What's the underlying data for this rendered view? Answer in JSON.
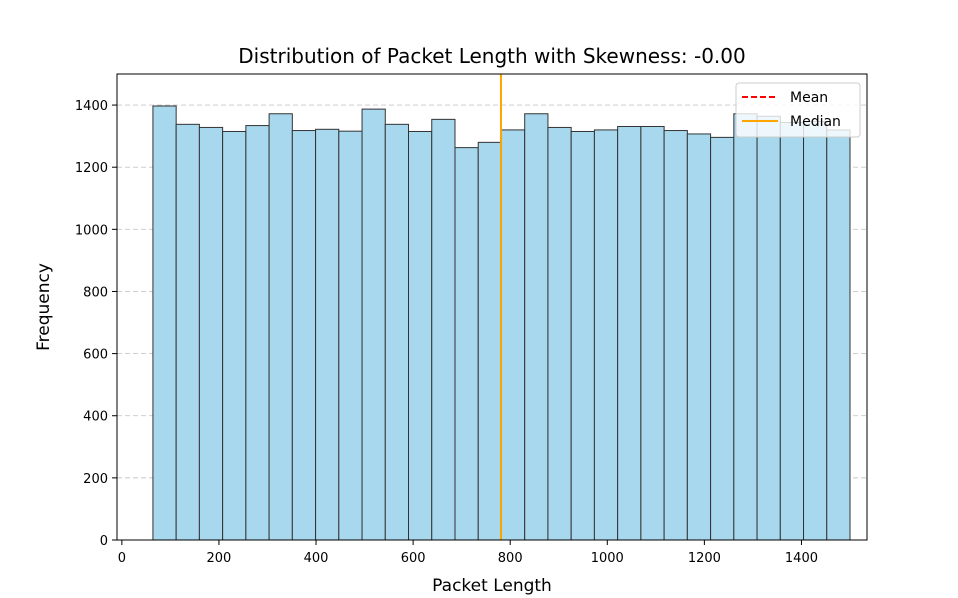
{
  "chart_data": {
    "type": "bar",
    "title": "Distribution of Packet Length with Skewness: -0.00",
    "xlabel": "Packet Length",
    "ylabel": "Frequency",
    "xlim": [
      -10,
      1535
    ],
    "ylim": [
      0,
      1500
    ],
    "xticks": [
      0,
      200,
      400,
      600,
      800,
      1000,
      1200,
      1400
    ],
    "yticks": [
      0,
      200,
      400,
      600,
      800,
      1000,
      1200,
      1400
    ],
    "grid": "y-dashed",
    "bin_start": 64,
    "bin_end": 1500,
    "values": [
      1397,
      1338,
      1328,
      1315,
      1334,
      1372,
      1318,
      1322,
      1316,
      1387,
      1338,
      1315,
      1354,
      1263,
      1280,
      1320,
      1372,
      1328,
      1315,
      1320,
      1331,
      1331,
      1318,
      1307,
      1296,
      1372,
      1364,
      1344,
      1347,
      1320
    ],
    "bar_fill": "#a8d8ed",
    "bar_edge": "#333333",
    "median": 781,
    "median_color": "#ffa500",
    "mean_color": "#ff0000",
    "legend": {
      "position": "top-right",
      "entries": [
        {
          "label": "Mean",
          "style": "dashed",
          "color": "#ff0000"
        },
        {
          "label": "Median",
          "style": "solid",
          "color": "#ffa500"
        }
      ]
    }
  }
}
